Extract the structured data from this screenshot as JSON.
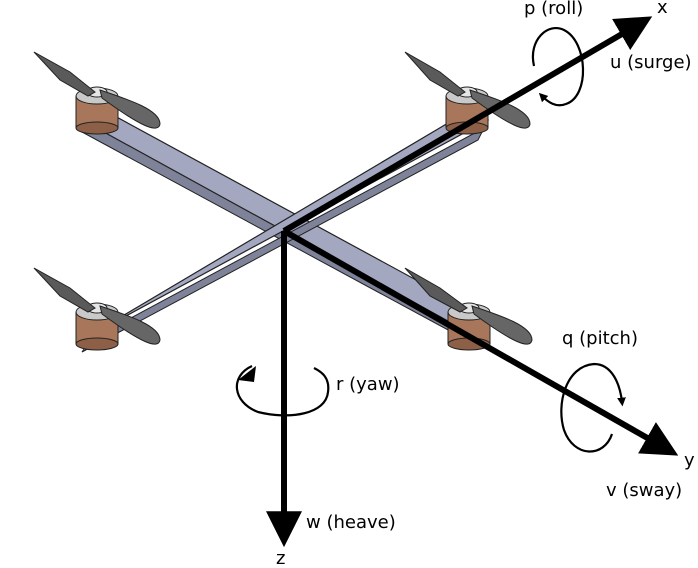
{
  "diagram": {
    "axes": {
      "x": {
        "label": "x",
        "linear": "u (surge)",
        "rotational": "p (roll)"
      },
      "y": {
        "label": "y",
        "linear": "v (sway)",
        "rotational": "q (pitch)"
      },
      "z": {
        "label": "z",
        "linear": "w (heave)",
        "rotational": "r (yaw)"
      }
    },
    "colors": {
      "frame": "#a3a7c0",
      "frame_shadow": "#7f8399",
      "motor": "#a8765a",
      "hub": "#c9c9c9",
      "propeller": "#5a5a5a",
      "axis": "#000000"
    }
  }
}
